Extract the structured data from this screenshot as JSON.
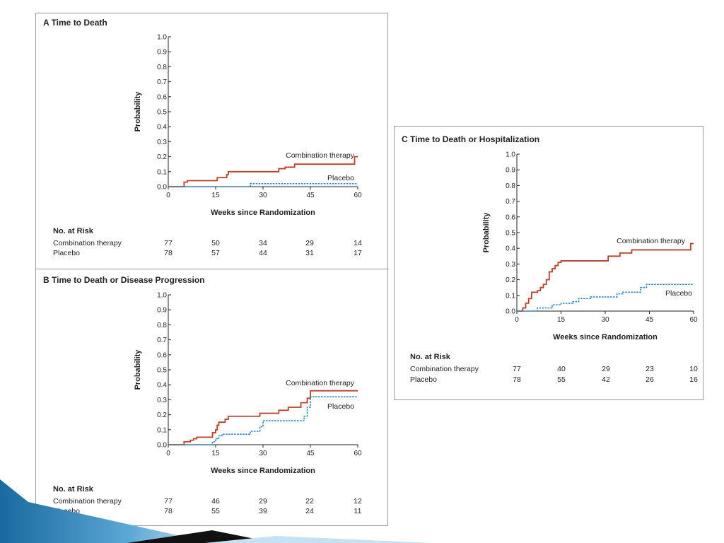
{
  "chart_data": [
    {
      "type": "line",
      "panel_letter": "A",
      "title": "Time to Death",
      "xlabel": "Weeks since Randomization",
      "ylabel": "Probability",
      "xlim": [
        0,
        60
      ],
      "ylim": [
        0,
        1.0
      ],
      "x_ticks": [
        "0",
        "15",
        "30",
        "45",
        "60"
      ],
      "y_ticks": [
        "0.0",
        "0.1",
        "0.2",
        "0.3",
        "0.4",
        "0.5",
        "0.6",
        "0.7",
        "0.8",
        "0.9",
        "1.0"
      ],
      "series": [
        {
          "name": "Combination therapy",
          "color": "#b5402c",
          "style": "solid",
          "points": [
            [
              0,
              0
            ],
            [
              5,
              0
            ],
            [
              5,
              0.03
            ],
            [
              6,
              0.04
            ],
            [
              15,
              0.04
            ],
            [
              15.5,
              0.06
            ],
            [
              18,
              0.06
            ],
            [
              18.5,
              0.08
            ],
            [
              19,
              0.1
            ],
            [
              35,
              0.1
            ],
            [
              35,
              0.12
            ],
            [
              37,
              0.13
            ],
            [
              40,
              0.13
            ],
            [
              40,
              0.15
            ],
            [
              59,
              0.15
            ],
            [
              59,
              0.2
            ],
            [
              60,
              0.2
            ]
          ]
        },
        {
          "name": "Placebo",
          "color": "#2e86c1",
          "style": "dashed",
          "points": [
            [
              0,
              0
            ],
            [
              26,
              0
            ],
            [
              26,
              0.02
            ],
            [
              60,
              0.02
            ]
          ]
        }
      ],
      "risk_table": {
        "header": "No. at Risk",
        "rows": [
          {
            "label": "Combination therapy",
            "values": [
              "77",
              "50",
              "34",
              "29",
              "14"
            ]
          },
          {
            "label": "Placebo",
            "values": [
              "78",
              "57",
              "44",
              "31",
              "17"
            ]
          }
        ]
      }
    },
    {
      "type": "line",
      "panel_letter": "B",
      "title": "Time to Death or Disease Progression",
      "xlabel": "Weeks since Randomization",
      "ylabel": "Probability",
      "xlim": [
        0,
        60
      ],
      "ylim": [
        0,
        1.0
      ],
      "x_ticks": [
        "0",
        "15",
        "30",
        "45",
        "60"
      ],
      "y_ticks": [
        "0.0",
        "0.1",
        "0.2",
        "0.3",
        "0.4",
        "0.5",
        "0.6",
        "0.7",
        "0.8",
        "0.9",
        "1.0"
      ],
      "series": [
        {
          "name": "Combination therapy",
          "color": "#b5402c",
          "style": "solid",
          "points": [
            [
              0,
              0
            ],
            [
              5,
              0
            ],
            [
              5,
              0.02
            ],
            [
              7,
              0.03
            ],
            [
              8,
              0.04
            ],
            [
              9,
              0.05
            ],
            [
              14,
              0.05
            ],
            [
              14,
              0.08
            ],
            [
              15,
              0.1
            ],
            [
              15.5,
              0.13
            ],
            [
              16,
              0.15
            ],
            [
              18,
              0.17
            ],
            [
              19,
              0.19
            ],
            [
              29,
              0.19
            ],
            [
              29,
              0.21
            ],
            [
              35,
              0.23
            ],
            [
              38,
              0.25
            ],
            [
              42,
              0.28
            ],
            [
              44,
              0.31
            ],
            [
              45,
              0.36
            ],
            [
              60,
              0.36
            ]
          ]
        },
        {
          "name": "Placebo",
          "color": "#2e86c1",
          "style": "dashed",
          "points": [
            [
              0,
              0
            ],
            [
              14,
              0
            ],
            [
              14,
              0.02
            ],
            [
              15,
              0.04
            ],
            [
              16,
              0.06
            ],
            [
              17,
              0.07
            ],
            [
              26,
              0.07
            ],
            [
              26,
              0.09
            ],
            [
              29,
              0.12
            ],
            [
              30,
              0.16
            ],
            [
              43,
              0.16
            ],
            [
              43,
              0.19
            ],
            [
              44,
              0.25
            ],
            [
              45,
              0.32
            ],
            [
              60,
              0.32
            ]
          ]
        }
      ],
      "risk_table": {
        "header": "No. at Risk",
        "rows": [
          {
            "label": "Combination therapy",
            "values": [
              "77",
              "46",
              "29",
              "22",
              "12"
            ]
          },
          {
            "label": "Placebo",
            "values": [
              "78",
              "55",
              "39",
              "24",
              "11"
            ]
          }
        ]
      }
    },
    {
      "type": "line",
      "panel_letter": "C",
      "title": "Time to Death or Hospitalization",
      "xlabel": "Weeks since Randomization",
      "ylabel": "Probability",
      "xlim": [
        0,
        60
      ],
      "ylim": [
        0,
        1.0
      ],
      "x_ticks": [
        "0",
        "15",
        "30",
        "45",
        "60"
      ],
      "y_ticks": [
        "0.0",
        "0.1",
        "0.2",
        "0.3",
        "0.4",
        "0.5",
        "0.6",
        "0.7",
        "0.8",
        "0.9",
        "1.0"
      ],
      "series": [
        {
          "name": "Combination therapy",
          "color": "#b5402c",
          "style": "solid",
          "points": [
            [
              0,
              0
            ],
            [
              2,
              0.02
            ],
            [
              3,
              0.05
            ],
            [
              4,
              0.08
            ],
            [
              5,
              0.12
            ],
            [
              7,
              0.13
            ],
            [
              8,
              0.15
            ],
            [
              9,
              0.17
            ],
            [
              10,
              0.2
            ],
            [
              11,
              0.25
            ],
            [
              12,
              0.27
            ],
            [
              13,
              0.29
            ],
            [
              14,
              0.31
            ],
            [
              15,
              0.32
            ],
            [
              31,
              0.32
            ],
            [
              31,
              0.35
            ],
            [
              34,
              0.35
            ],
            [
              35,
              0.37
            ],
            [
              38,
              0.37
            ],
            [
              39,
              0.39
            ],
            [
              59,
              0.39
            ],
            [
              59,
              0.43
            ],
            [
              60,
              0.43
            ]
          ]
        },
        {
          "name": "Placebo",
          "color": "#2e86c1",
          "style": "dashed",
          "points": [
            [
              0,
              0
            ],
            [
              7,
              0
            ],
            [
              7,
              0.02
            ],
            [
              12,
              0.02
            ],
            [
              12,
              0.04
            ],
            [
              15,
              0.05
            ],
            [
              19,
              0.06
            ],
            [
              21,
              0.08
            ],
            [
              25,
              0.09
            ],
            [
              34,
              0.09
            ],
            [
              34,
              0.11
            ],
            [
              36,
              0.12
            ],
            [
              41,
              0.12
            ],
            [
              42,
              0.15
            ],
            [
              44,
              0.17
            ],
            [
              60,
              0.17
            ]
          ]
        }
      ],
      "risk_table": {
        "header": "No. at Risk",
        "rows": [
          {
            "label": "Combination therapy",
            "values": [
              "77",
              "40",
              "29",
              "23",
              "10"
            ]
          },
          {
            "label": "Placebo",
            "values": [
              "78",
              "55",
              "42",
              "26",
              "16"
            ]
          }
        ]
      }
    }
  ],
  "colors": {
    "deco_blue_dark": "#1a6aa0",
    "deco_blue_light": "#c6e1f1",
    "deco_black": "#111111"
  }
}
